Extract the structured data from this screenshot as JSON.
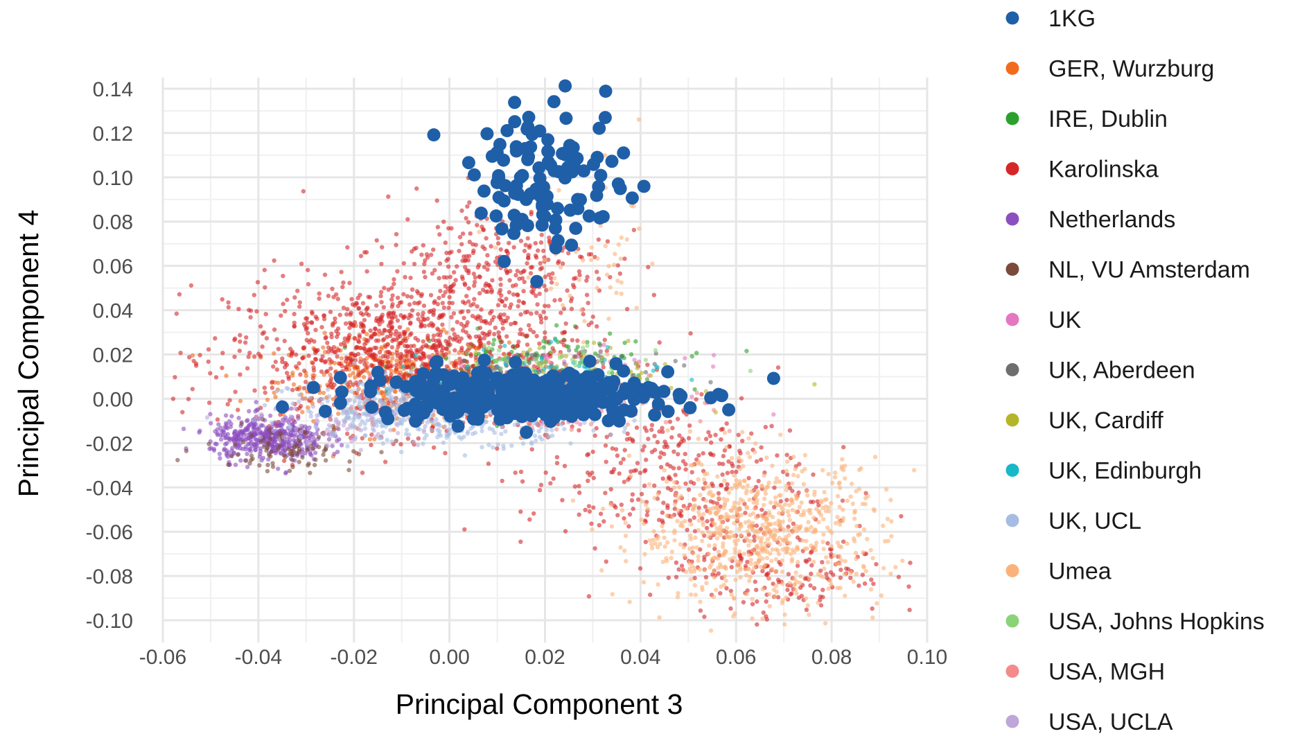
{
  "chart_data": {
    "type": "scatter",
    "title": "",
    "xlabel": "Principal Component 3",
    "ylabel": "Principal Component 4",
    "xlim": [
      -0.06,
      0.1
    ],
    "ylim": [
      -0.11,
      0.145
    ],
    "xticks": [
      "-0.06",
      "-0.04",
      "-0.02",
      "0.00",
      "0.02",
      "0.04",
      "0.06",
      "0.08",
      "0.10"
    ],
    "yticks": [
      "-0.10",
      "-0.08",
      "-0.06",
      "-0.04",
      "-0.02",
      "0.00",
      "0.02",
      "0.04",
      "0.06",
      "0.08",
      "0.10",
      "0.12",
      "0.14"
    ],
    "grid": true,
    "legend_position": "right",
    "series": [
      {
        "name": "1KG",
        "color": "#1f5fa8",
        "clusters": [
          {
            "cx": 0.021,
            "cy": 0.1,
            "sx": 0.008,
            "sy": 0.016,
            "n": 110
          },
          {
            "cx": 0.015,
            "cy": 0.002,
            "sx": 0.016,
            "sy": 0.006,
            "n": 320
          }
        ]
      },
      {
        "name": "GER, Wurzburg",
        "color": "#f26b1d",
        "clusters": [
          {
            "cx": -0.012,
            "cy": 0.008,
            "sx": 0.012,
            "sy": 0.01,
            "n": 420
          }
        ]
      },
      {
        "name": "IRE, Dublin",
        "color": "#2ca02c",
        "clusters": [
          {
            "cx": 0.018,
            "cy": 0.016,
            "sx": 0.014,
            "sy": 0.007,
            "n": 150
          }
        ]
      },
      {
        "name": "Karolinska",
        "color": "#d62728",
        "clusters": [
          {
            "cx": -0.01,
            "cy": 0.02,
            "sx": 0.018,
            "sy": 0.017,
            "n": 1100
          },
          {
            "cx": 0.01,
            "cy": 0.06,
            "sx": 0.012,
            "sy": 0.016,
            "n": 300
          },
          {
            "cx": 0.045,
            "cy": -0.035,
            "sx": 0.015,
            "sy": 0.018,
            "n": 350
          },
          {
            "cx": 0.07,
            "cy": -0.075,
            "sx": 0.011,
            "sy": 0.012,
            "n": 180
          }
        ]
      },
      {
        "name": "Netherlands",
        "color": "#8c4fbf",
        "clusters": [
          {
            "cx": -0.038,
            "cy": -0.018,
            "sx": 0.006,
            "sy": 0.005,
            "n": 450
          }
        ]
      },
      {
        "name": "NL, VU Amsterdam",
        "color": "#7b4a3a",
        "clusters": [
          {
            "cx": -0.035,
            "cy": -0.022,
            "sx": 0.008,
            "sy": 0.005,
            "n": 90
          }
        ]
      },
      {
        "name": "UK",
        "color": "#e377c2",
        "clusters": [
          {
            "cx": 0.02,
            "cy": 0.005,
            "sx": 0.015,
            "sy": 0.007,
            "n": 120
          }
        ]
      },
      {
        "name": "UK, Aberdeen",
        "color": "#6e6e6e",
        "clusters": [
          {
            "cx": 0.022,
            "cy": 0.012,
            "sx": 0.012,
            "sy": 0.006,
            "n": 70
          }
        ]
      },
      {
        "name": "UK, Cardiff",
        "color": "#b5b52a",
        "clusters": [
          {
            "cx": 0.025,
            "cy": 0.012,
            "sx": 0.012,
            "sy": 0.006,
            "n": 90
          }
        ]
      },
      {
        "name": "UK, Edinburgh",
        "color": "#17b8c8",
        "clusters": [
          {
            "cx": 0.02,
            "cy": 0.01,
            "sx": 0.012,
            "sy": 0.006,
            "n": 110
          }
        ]
      },
      {
        "name": "UK, UCL",
        "color": "#a6bce3",
        "clusters": [
          {
            "cx": 0.0,
            "cy": -0.005,
            "sx": 0.016,
            "sy": 0.007,
            "n": 650
          }
        ]
      },
      {
        "name": "Umea",
        "color": "#fbb27a",
        "clusters": [
          {
            "cx": 0.065,
            "cy": -0.06,
            "sx": 0.013,
            "sy": 0.016,
            "n": 700
          },
          {
            "cx": 0.03,
            "cy": 0.06,
            "sx": 0.008,
            "sy": 0.02,
            "n": 60
          }
        ]
      },
      {
        "name": "USA, Johns Hopkins",
        "color": "#8ad477",
        "clusters": [
          {
            "cx": 0.02,
            "cy": 0.012,
            "sx": 0.012,
            "sy": 0.007,
            "n": 80
          }
        ]
      },
      {
        "name": "USA, MGH",
        "color": "#f48b8b",
        "clusters": [
          {
            "cx": 0.03,
            "cy": 0.0,
            "sx": 0.012,
            "sy": 0.007,
            "n": 80
          }
        ]
      },
      {
        "name": "USA, UCLA",
        "color": "#bfa6d8",
        "clusters": [
          {
            "cx": -0.02,
            "cy": -0.01,
            "sx": 0.01,
            "sy": 0.006,
            "n": 80
          }
        ]
      }
    ]
  }
}
